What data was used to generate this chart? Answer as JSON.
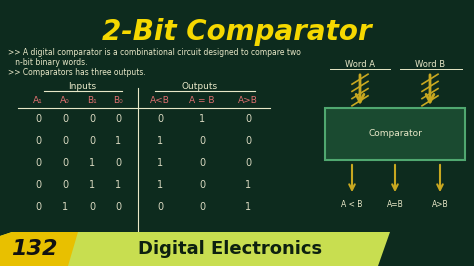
{
  "title": "2-Bit Comparator",
  "bg_color": "#0d2b1e",
  "title_color": "#f5d800",
  "subtitle_lines": [
    ">> A digital comparator is a combinational circuit designed to compare two",
    "   n-bit binary words.",
    ">> Comparators has three outputs."
  ],
  "subtitle_color": "#e8e8c8",
  "inputs_label": "Inputs",
  "outputs_label": "Outputs",
  "col_headers": [
    "A₁",
    "A₀",
    "B₁",
    "B₀",
    "A<B",
    "A = B",
    "A>B"
  ],
  "table_data": [
    [
      0,
      0,
      0,
      0,
      0,
      1,
      0
    ],
    [
      0,
      0,
      0,
      1,
      1,
      0,
      0
    ],
    [
      0,
      0,
      1,
      0,
      1,
      0,
      0
    ],
    [
      0,
      0,
      1,
      1,
      1,
      0,
      1
    ],
    [
      0,
      1,
      0,
      0,
      0,
      0,
      1
    ]
  ],
  "table_color": "#d8d8c0",
  "header_color": "#e07070",
  "word_a_label": "Word A",
  "word_b_label": "Word B",
  "comparator_label": "Comparator",
  "output_labels": [
    "A < B",
    "A=B",
    "A>B"
  ],
  "diagram_color": "#e8e8c8",
  "diagram_box_color": "#1a4a30",
  "diagram_box_border": "#50a870",
  "arrow_color": "#c8a820",
  "bottom_bar_color": "#c8de50",
  "bottom_badge_color": "#e8c000",
  "bottom_number": "132",
  "bottom_text": "Digital Electronics",
  "bottom_text_color": "#0d2010"
}
